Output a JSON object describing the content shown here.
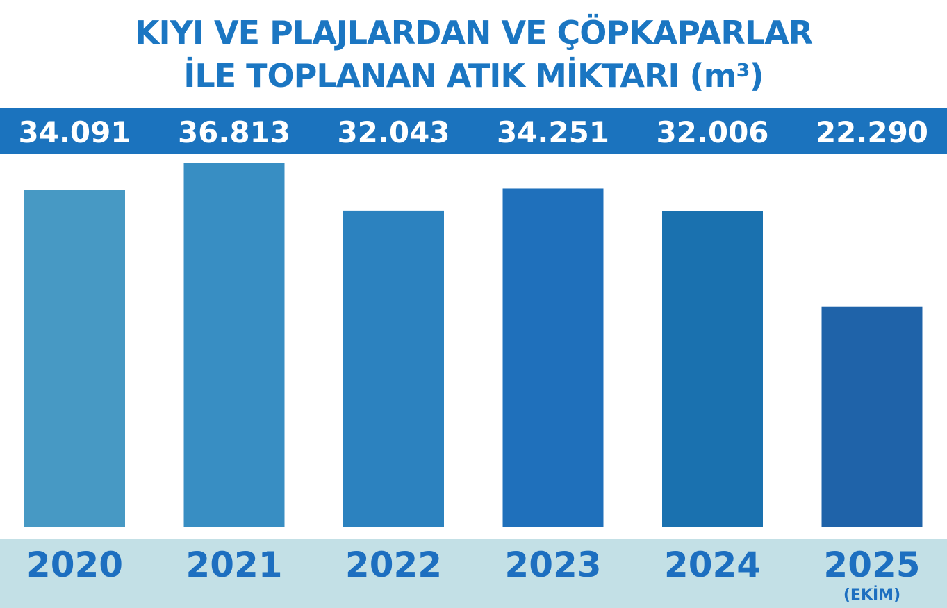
{
  "chart_data": {
    "type": "bar",
    "title": [
      "KIYI VE PLAJLARDAN VE ÇÖPKAPARLAR",
      "İLE TOPLANAN ATIK MİKTARI (m³)"
    ],
    "categories": [
      "2020",
      "2021",
      "2022",
      "2023",
      "2024",
      "2025"
    ],
    "category_notes": [
      "",
      "",
      "",
      "",
      "",
      "(EKİM)"
    ],
    "values": [
      34091,
      36813,
      32043,
      34251,
      32006,
      22290
    ],
    "value_labels": [
      "34.091",
      "36.813",
      "32.043",
      "34.251",
      "32.006",
      "22.290"
    ],
    "bar_colors": [
      "#4799c4",
      "#388ec3",
      "#2c82bf",
      "#1f70bb",
      "#1a71af",
      "#1f63a9"
    ],
    "grid": false,
    "legend": "none"
  }
}
